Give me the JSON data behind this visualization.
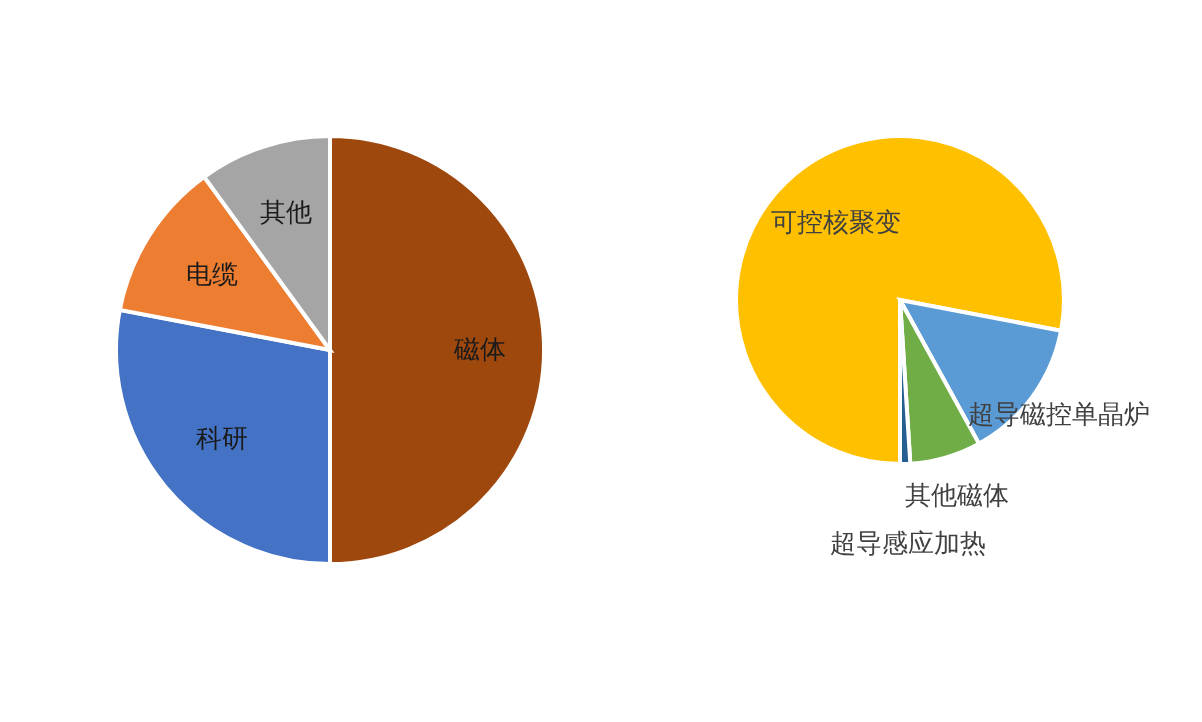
{
  "chart_data": [
    {
      "type": "pie",
      "categories": [
        "磁体",
        "科研",
        "电缆",
        "其他"
      ],
      "values": [
        50,
        28,
        12,
        10
      ],
      "colors": [
        "#9e480e",
        "#4472c4",
        "#ed7d31",
        "#a5a5a5"
      ]
    },
    {
      "type": "pie",
      "categories": [
        "可控核聚变",
        "超导磁控单晶炉",
        "其他磁体",
        "超导感应加热"
      ],
      "values": [
        78,
        14,
        7,
        1
      ],
      "colors": [
        "#ffc000",
        "#5b9bd5",
        "#70ad47",
        "#255e91"
      ]
    }
  ]
}
